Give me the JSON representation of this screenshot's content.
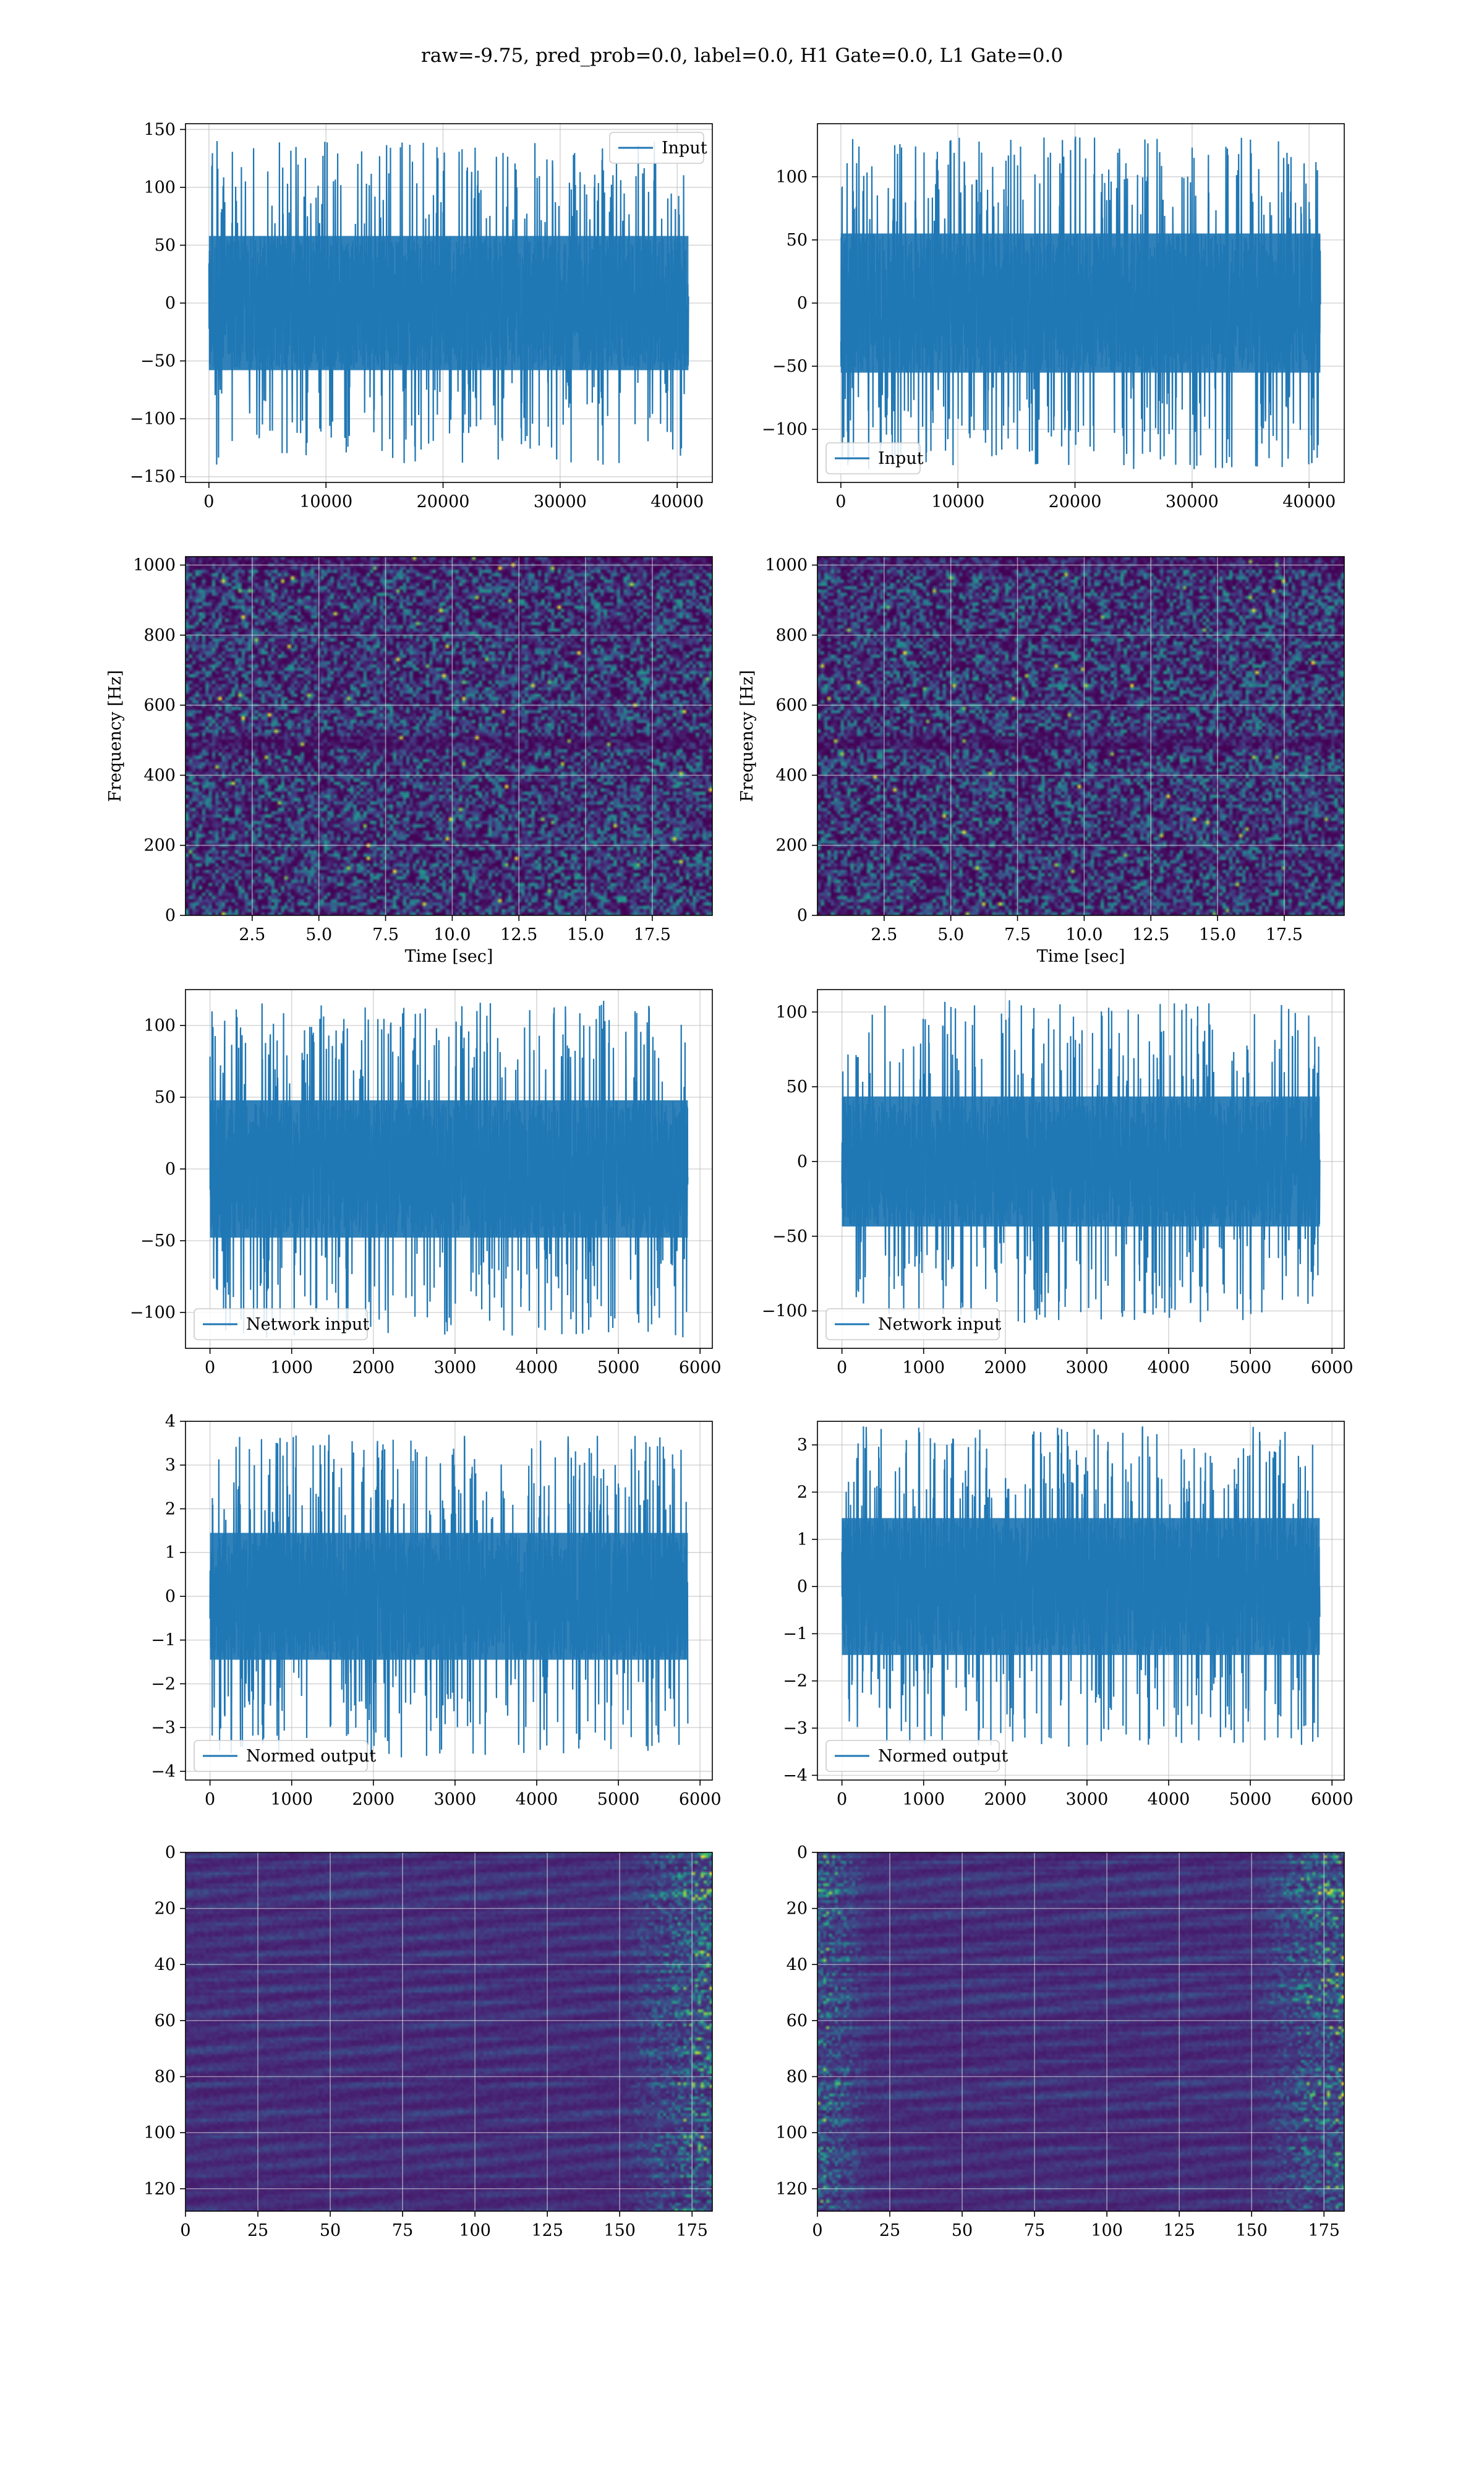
{
  "figure": {
    "title": "raw=-9.75, pred_prob=0.0, label=0.0, H1 Gate=0.0, L1 Gate=0.0"
  },
  "chart_data": [
    {
      "id": "input-h1",
      "type": "line",
      "row": 0,
      "col": 0,
      "series": [
        {
          "name": "Input",
          "kind": "noise",
          "n": 40960,
          "amp": 40,
          "peak": 140,
          "color": "#1f77b4"
        }
      ],
      "xlim": [
        -2000,
        43000
      ],
      "ylim": [
        -155,
        155
      ],
      "xticks": [
        0,
        10000,
        20000,
        30000,
        40000
      ],
      "xtick_labels": [
        "0",
        "10000",
        "20000",
        "30000",
        "40000"
      ],
      "yticks": [
        -150,
        -100,
        -50,
        0,
        50,
        100,
        150
      ],
      "ytick_labels": [
        "−150",
        "−100",
        "−50",
        "0",
        "50",
        "100",
        "150"
      ],
      "legend": {
        "label": "Input",
        "position": "top-right"
      },
      "grid": true,
      "xlabel": "",
      "ylabel": ""
    },
    {
      "id": "input-l1",
      "type": "line",
      "row": 0,
      "col": 1,
      "series": [
        {
          "name": "Input",
          "kind": "noise",
          "n": 40960,
          "amp": 38,
          "peak": 132,
          "color": "#1f77b4"
        }
      ],
      "xlim": [
        -2000,
        43000
      ],
      "ylim": [
        -142,
        142
      ],
      "xticks": [
        0,
        10000,
        20000,
        30000,
        40000
      ],
      "xtick_labels": [
        "0",
        "10000",
        "20000",
        "30000",
        "40000"
      ],
      "yticks": [
        -100,
        -50,
        0,
        50,
        100
      ],
      "ytick_labels": [
        "−100",
        "−50",
        "0",
        "50",
        "100"
      ],
      "legend": {
        "label": "Input",
        "position": "bottom-left"
      },
      "grid": true,
      "xlabel": "",
      "ylabel": ""
    },
    {
      "id": "spectrogram-h1",
      "type": "heatmap",
      "row": 1,
      "col": 0,
      "kind": "spectrogram",
      "xlim": [
        0,
        19.75
      ],
      "ylim": [
        0,
        1024
      ],
      "xticks": [
        2.5,
        5.0,
        7.5,
        10.0,
        12.5,
        15.0,
        17.5
      ],
      "xtick_labels": [
        "2.5",
        "5.0",
        "7.5",
        "10.0",
        "12.5",
        "15.0",
        "17.5"
      ],
      "yticks": [
        0,
        200,
        400,
        600,
        800,
        1000
      ],
      "ytick_labels": [
        "0",
        "200",
        "400",
        "600",
        "800",
        "1000"
      ],
      "xlabel": "Time [sec]",
      "ylabel": "Frequency [Hz]",
      "grid": true,
      "colormap": "viridis",
      "seed": 11
    },
    {
      "id": "spectrogram-l1",
      "type": "heatmap",
      "row": 1,
      "col": 1,
      "kind": "spectrogram",
      "xlim": [
        0,
        19.75
      ],
      "ylim": [
        0,
        1024
      ],
      "xticks": [
        2.5,
        5.0,
        7.5,
        10.0,
        12.5,
        15.0,
        17.5
      ],
      "xtick_labels": [
        "2.5",
        "5.0",
        "7.5",
        "10.0",
        "12.5",
        "15.0",
        "17.5"
      ],
      "yticks": [
        0,
        200,
        400,
        600,
        800,
        1000
      ],
      "ytick_labels": [
        "0",
        "200",
        "400",
        "600",
        "800",
        "1000"
      ],
      "xlabel": "Time [sec]",
      "ylabel": "Frequency [Hz]",
      "grid": true,
      "colormap": "viridis",
      "seed": 23
    },
    {
      "id": "network-input-h1",
      "type": "line",
      "row": 2,
      "col": 0,
      "series": [
        {
          "name": "Network input",
          "kind": "noise",
          "n": 5850,
          "amp": 33,
          "peak": 118,
          "color": "#1f77b4"
        }
      ],
      "xlim": [
        -300,
        6150
      ],
      "ylim": [
        -125,
        125
      ],
      "xticks": [
        0,
        1000,
        2000,
        3000,
        4000,
        5000,
        6000
      ],
      "xtick_labels": [
        "0",
        "1000",
        "2000",
        "3000",
        "4000",
        "5000",
        "6000"
      ],
      "yticks": [
        -100,
        -50,
        0,
        50,
        100
      ],
      "ytick_labels": [
        "−100",
        "−50",
        "0",
        "50",
        "100"
      ],
      "legend": {
        "label": "Network input",
        "position": "bottom-left"
      },
      "grid": true,
      "xlabel": "",
      "ylabel": ""
    },
    {
      "id": "network-input-l1",
      "type": "line",
      "row": 2,
      "col": 1,
      "series": [
        {
          "name": "Network input",
          "kind": "noise",
          "n": 5850,
          "amp": 30,
          "peak": 108,
          "color": "#1f77b4"
        }
      ],
      "xlim": [
        -300,
        6150
      ],
      "ylim": [
        -125,
        115
      ],
      "xticks": [
        0,
        1000,
        2000,
        3000,
        4000,
        5000,
        6000
      ],
      "xtick_labels": [
        "0",
        "1000",
        "2000",
        "3000",
        "4000",
        "5000",
        "6000"
      ],
      "yticks": [
        -100,
        -50,
        0,
        50,
        100
      ],
      "ytick_labels": [
        "−100",
        "−50",
        "0",
        "50",
        "100"
      ],
      "legend": {
        "label": "Network input",
        "position": "bottom-left"
      },
      "grid": true,
      "xlabel": "",
      "ylabel": ""
    },
    {
      "id": "normed-output-h1",
      "type": "line",
      "row": 3,
      "col": 0,
      "series": [
        {
          "name": "Normed output",
          "kind": "noise",
          "n": 5850,
          "amp": 1.0,
          "peak": 3.7,
          "color": "#1f77b4"
        }
      ],
      "xlim": [
        -300,
        6150
      ],
      "ylim": [
        -4.2,
        4.0
      ],
      "xticks": [
        0,
        1000,
        2000,
        3000,
        4000,
        5000,
        6000
      ],
      "xtick_labels": [
        "0",
        "1000",
        "2000",
        "3000",
        "4000",
        "5000",
        "6000"
      ],
      "yticks": [
        -4,
        -3,
        -2,
        -1,
        0,
        1,
        2,
        3,
        4
      ],
      "ytick_labels": [
        "−4",
        "−3",
        "−2",
        "−1",
        "0",
        "1",
        "2",
        "3",
        "4"
      ],
      "legend": {
        "label": "Normed output",
        "position": "bottom-left"
      },
      "grid": true,
      "xlabel": "",
      "ylabel": ""
    },
    {
      "id": "normed-output-l1",
      "type": "line",
      "row": 3,
      "col": 1,
      "series": [
        {
          "name": "Normed output",
          "kind": "noise",
          "n": 5850,
          "amp": 1.0,
          "peak": 3.4,
          "color": "#1f77b4"
        }
      ],
      "xlim": [
        -300,
        6150
      ],
      "ylim": [
        -4.1,
        3.5
      ],
      "xticks": [
        0,
        1000,
        2000,
        3000,
        4000,
        5000,
        6000
      ],
      "xtick_labels": [
        "0",
        "1000",
        "2000",
        "3000",
        "4000",
        "5000",
        "6000"
      ],
      "yticks": [
        -4,
        -3,
        -2,
        -1,
        0,
        1,
        2,
        3
      ],
      "ytick_labels": [
        "−4",
        "−3",
        "−2",
        "−1",
        "0",
        "1",
        "2",
        "3"
      ],
      "legend": {
        "label": "Normed output",
        "position": "bottom-left"
      },
      "grid": true,
      "xlabel": "",
      "ylabel": ""
    },
    {
      "id": "feature-map-h1",
      "type": "heatmap",
      "row": 4,
      "col": 0,
      "kind": "feature",
      "xlim": [
        0,
        182
      ],
      "ylim": [
        128,
        0
      ],
      "xticks": [
        0,
        25,
        50,
        75,
        100,
        125,
        150,
        175
      ],
      "xtick_labels": [
        "0",
        "25",
        "50",
        "75",
        "100",
        "125",
        "150",
        "175"
      ],
      "yticks": [
        0,
        20,
        40,
        60,
        80,
        100,
        120
      ],
      "ytick_labels": [
        "0",
        "20",
        "40",
        "60",
        "80",
        "100",
        "120"
      ],
      "grid": true,
      "colormap": "viridis",
      "seed": 37,
      "edge_bright": "right"
    },
    {
      "id": "feature-map-l1",
      "type": "heatmap",
      "row": 4,
      "col": 1,
      "kind": "feature",
      "xlim": [
        0,
        182
      ],
      "ylim": [
        128,
        0
      ],
      "xticks": [
        0,
        25,
        50,
        75,
        100,
        125,
        150,
        175
      ],
      "xtick_labels": [
        "0",
        "25",
        "50",
        "75",
        "100",
        "125",
        "150",
        "175"
      ],
      "yticks": [
        0,
        20,
        40,
        60,
        80,
        100,
        120
      ],
      "ytick_labels": [
        "0",
        "20",
        "40",
        "60",
        "80",
        "100",
        "120"
      ],
      "grid": true,
      "colormap": "viridis",
      "seed": 53,
      "edge_bright": "both"
    }
  ]
}
